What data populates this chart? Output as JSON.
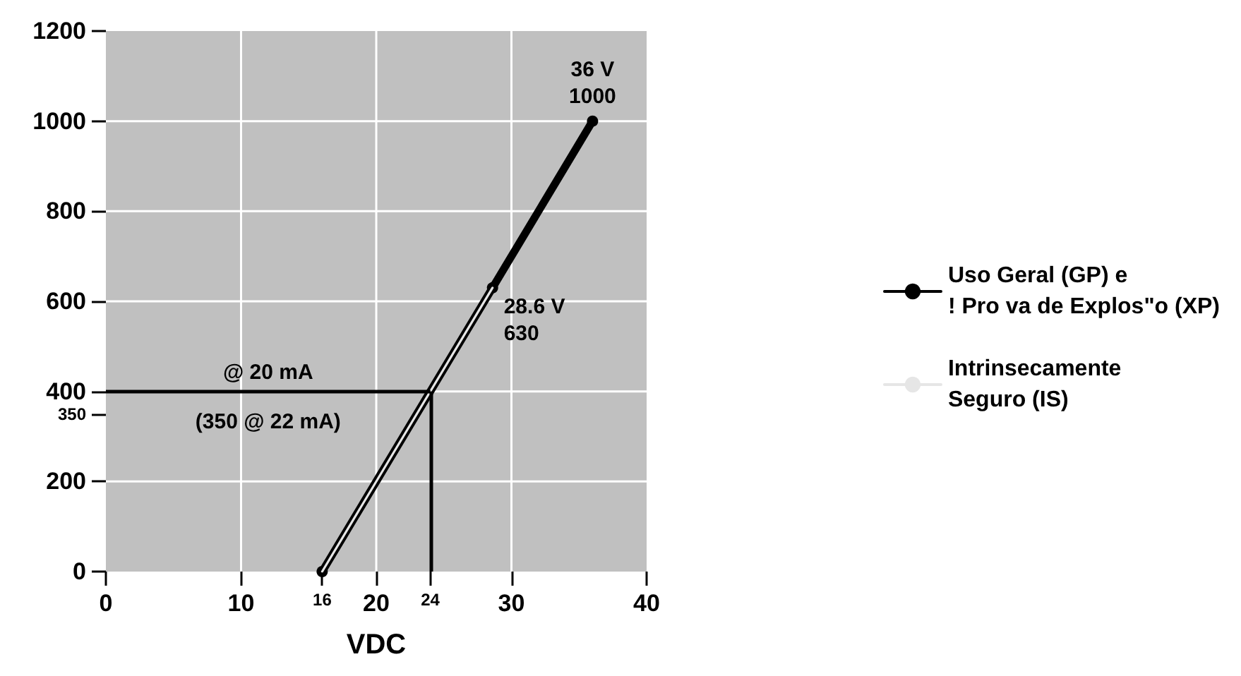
{
  "chart_data": {
    "type": "line",
    "xlabel": "VDC",
    "xlim": [
      0,
      40
    ],
    "xticks": [
      0,
      10,
      {
        "value": 16,
        "label": "16"
      },
      20,
      {
        "value": 24,
        "label": "24"
      },
      30,
      40
    ],
    "ylim": [
      0,
      1200
    ],
    "yticks": [
      0,
      200,
      {
        "value": 350,
        "label": "350"
      },
      400,
      600,
      800,
      1000,
      1200
    ],
    "grid": true,
    "legend": "right",
    "series": [
      {
        "name": "Uso Geral (GP) e\n! Pro va de Explos\"o (XP)",
        "color": "#000000",
        "marker": "circle",
        "x": [
          16,
          28.6,
          36
        ],
        "values": [
          0,
          630,
          1000
        ]
      },
      {
        "name": "Intrinsecamente\nSeguro (IS)",
        "color": "#e6e6e6",
        "x": [
          16,
          28.6
        ],
        "values": [
          0,
          630
        ]
      }
    ],
    "ref_lines": [
      {
        "axis": "y",
        "value": 400,
        "label": "@ 20 mA"
      },
      {
        "axis": "x",
        "value": 24
      }
    ],
    "annotations": [
      {
        "text": "36 V\n1000",
        "x": 36,
        "y": 1000
      },
      {
        "text": "28.6 V\n630",
        "x": 28.6,
        "y": 630
      },
      "(350 @ 22 mA)"
    ]
  }
}
